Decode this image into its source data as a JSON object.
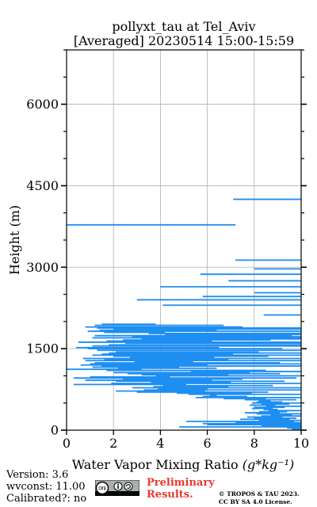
{
  "chart_data": {
    "type": "line",
    "title": "pollyxt_tau at Tel_Aviv",
    "subtitle": "[Averaged] 20230514 15:00-15:59",
    "xlabel": "Water Vapor Mixing Ratio",
    "xlabel_unit": "(g*kg⁻¹)",
    "ylabel": "Height (m)",
    "xlim": [
      0,
      10
    ],
    "ylim": [
      0,
      7000
    ],
    "xticks": [
      0,
      2,
      4,
      6,
      8,
      10
    ],
    "yticks": [
      0,
      1500,
      3000,
      4500,
      6000
    ],
    "grid": true,
    "color": "#1f8ef1",
    "series": [
      {
        "heights": [
          4250,
          3780,
          3130,
          2970,
          2870,
          2750,
          2640,
          2530,
          2460,
          2400,
          2300,
          2120,
          1950,
          1930,
          1900,
          1880,
          1860,
          1840,
          1820,
          1800,
          1780,
          1760,
          1740,
          1720,
          1700,
          1680,
          1660,
          1640,
          1620,
          1600,
          1570,
          1550,
          1520,
          1500,
          1470,
          1440,
          1420,
          1400,
          1380,
          1360,
          1340,
          1320,
          1300,
          1280,
          1260,
          1240,
          1220,
          1200,
          1180,
          1160,
          1140,
          1120,
          1100,
          1080,
          1060,
          1040,
          1020,
          1000,
          980,
          960,
          940,
          920,
          900,
          880,
          860,
          840,
          820,
          800,
          780,
          760,
          740,
          720,
          700,
          680,
          660,
          640,
          620,
          600,
          580,
          560,
          540,
          520,
          500,
          480,
          460,
          440,
          420,
          400,
          380,
          360,
          340,
          320,
          300,
          280,
          260,
          240,
          220,
          200,
          180,
          160,
          140,
          120,
          100,
          80,
          60,
          40,
          20
        ],
        "x_start": [
          7.1,
          0.0,
          7.2,
          8.0,
          5.7,
          6.9,
          4.0,
          8.0,
          5.8,
          3.0,
          4.1,
          8.4,
          1.5,
          1.2,
          0.8,
          1.3,
          2.0,
          1.4,
          0.9,
          1.6,
          3.5,
          4.2,
          1.2,
          2.8,
          1.1,
          3.2,
          2.4,
          1.7,
          0.5,
          2.5,
          1.8,
          1.1,
          0.4,
          0.9,
          1.3,
          2.1,
          1.8,
          1.5,
          1.1,
          2.0,
          2.7,
          0.7,
          1.6,
          0.8,
          2.9,
          1.2,
          1.0,
          0.6,
          1.5,
          1.1,
          2.2,
          0.0,
          1.7,
          5.3,
          2.0,
          2.6,
          3.2,
          3.8,
          1.0,
          0.3,
          2.4,
          0.8,
          2.1,
          3.6,
          1.9,
          0.3,
          4.1,
          3.7,
          2.8,
          3.9,
          3.3,
          2.1,
          3.0,
          4.7,
          5.2,
          6.1,
          5.8,
          5.5,
          6.7,
          7.6,
          8.2,
          8.1,
          7.9,
          8.3,
          7.8,
          8.5,
          8.0,
          7.9,
          8.4,
          8.6,
          8.2,
          7.6,
          8.1,
          8.7,
          8.3,
          7.7,
          8.0,
          7.4,
          8.2,
          5.1,
          7.2,
          5.8,
          6.0,
          8.3,
          4.8,
          9.4,
          9.6
        ],
        "x_end": [
          10.0,
          7.2,
          10.0,
          10.0,
          10.0,
          10.0,
          10.0,
          10.0,
          10.0,
          10.0,
          10.0,
          10.0,
          3.8,
          6.7,
          7.5,
          10.0,
          10.0,
          6.4,
          10.0,
          4.2,
          10.0,
          10.0,
          9.6,
          10.0,
          10.0,
          10.0,
          8.7,
          6.2,
          10.0,
          10.0,
          10.0,
          10.0,
          6.5,
          9.2,
          10.0,
          8.2,
          10.0,
          7.1,
          10.0,
          8.6,
          6.3,
          10.0,
          6.9,
          10.0,
          5.4,
          9.1,
          10.0,
          6.0,
          10.0,
          4.8,
          6.4,
          3.2,
          8.5,
          10.0,
          7.8,
          9.1,
          6.9,
          10.0,
          4.4,
          9.8,
          7.5,
          6.2,
          9.3,
          7.0,
          10.0,
          5.1,
          8.8,
          6.9,
          10.0,
          6.0,
          10.0,
          5.9,
          8.6,
          7.9,
          10.0,
          6.4,
          7.7,
          10.0,
          8.5,
          9.8,
          8.7,
          9.2,
          10.0,
          9.5,
          8.9,
          10.0,
          9.3,
          8.8,
          9.0,
          10.0,
          9.4,
          9.1,
          10.0,
          9.6,
          10.0,
          9.2,
          9.8,
          9.5,
          10.0,
          9.7,
          10.0,
          10.0,
          10.0,
          10.0,
          10.0,
          10.0,
          10.0
        ]
      }
    ]
  },
  "footer": {
    "version": "Version: 3.6",
    "wvconst": "wvconst:  11.00",
    "calibrated": "Calibrated?: no",
    "preliminary_line1": "Preliminary",
    "preliminary_line2": "Results.",
    "copyright_line1": "© TROPOS & TAU 2023.",
    "copyright_line2": "CC BY SA 4.0 License.",
    "cc_badge": "CC BY SA"
  }
}
